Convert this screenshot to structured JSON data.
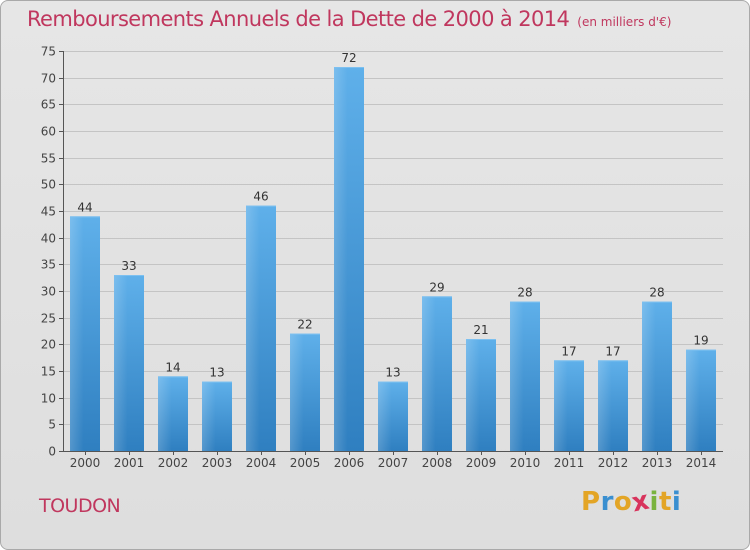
{
  "chart_data": {
    "type": "bar",
    "title": "Remboursements Annuels de la Dette de 2000 à 2014",
    "unit_label": "(en milliers d'€)",
    "categories": [
      "2000",
      "2001",
      "2002",
      "2003",
      "2004",
      "2005",
      "2006",
      "2007",
      "2008",
      "2009",
      "2010",
      "2011",
      "2012",
      "2013",
      "2014"
    ],
    "values": [
      44,
      33,
      14,
      13,
      46,
      22,
      72,
      13,
      29,
      21,
      28,
      17,
      17,
      28,
      19
    ],
    "ylim": [
      0,
      75
    ],
    "yticks": [
      0,
      5,
      10,
      15,
      20,
      25,
      30,
      35,
      40,
      45,
      50,
      55,
      60,
      65,
      70,
      75
    ],
    "grid": true,
    "bar_color": "#3d93d6",
    "title_color": "#c0375e"
  },
  "commune": "TOUDON",
  "logo": {
    "letters": [
      "P",
      "r",
      "o",
      "x",
      "i",
      "t",
      "i"
    ],
    "colors": [
      "#e3a526",
      "#3a8fd0",
      "#e3a526",
      "#d8335c",
      "#7ab33e",
      "#e3a526",
      "#3a8fd0"
    ]
  }
}
